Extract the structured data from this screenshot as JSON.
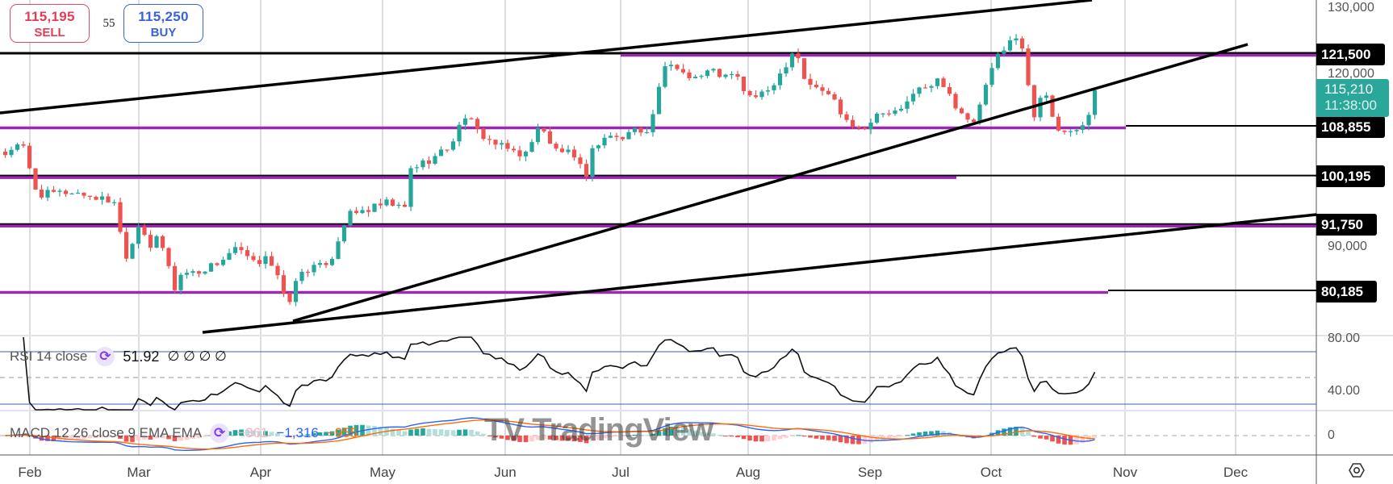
{
  "trade": {
    "sell_price": "115,195",
    "sell_label": "SELL",
    "spread": "55",
    "buy_price": "115,250",
    "buy_label": "BUY"
  },
  "price_axis": {
    "ticks": [
      "130,000",
      "120,000",
      "90,000"
    ],
    "levels": [
      {
        "price": 121500,
        "label": "121,500"
      },
      {
        "price": 108855,
        "label": "108,855"
      },
      {
        "price": 100195,
        "label": "100,195"
      },
      {
        "price": 91750,
        "label": "91,750"
      },
      {
        "price": 80185,
        "label": "80,185"
      }
    ],
    "current": {
      "price": "115,210",
      "countdown": "11:38:00"
    }
  },
  "rsi": {
    "title": "RSI 14 close",
    "value": "51.92",
    "extras": "∅ ∅ ∅ ∅",
    "ticks": [
      "80.00",
      "40.00"
    ]
  },
  "macd": {
    "title": "MACD 12 26 close 9 EMA EMA",
    "hist": "−361",
    "macd": "−1,316",
    "signal": "−955",
    "ticks": [
      "0"
    ]
  },
  "watermark": "TV TradingView",
  "time_axis": {
    "months": [
      "Feb",
      "Mar",
      "Apr",
      "May",
      "Jun",
      "Jul",
      "Aug",
      "Sep",
      "Oct",
      "Nov",
      "Dec"
    ]
  },
  "colors": {
    "up": "#26a69a",
    "down": "#ef5350",
    "level": "#9c27b0",
    "macd": "#2962ff",
    "signal": "#ff6d00",
    "current": "#2aa79b"
  },
  "chart_data": {
    "type": "candlestick",
    "title": "",
    "xlabel": "",
    "ylabel": "",
    "ylim": [
      76000,
      130000
    ],
    "indicators": [
      "RSI 14",
      "MACD 12 26 9"
    ],
    "close_anchors": [
      [
        "01-24",
        103000
      ],
      [
        "01-28",
        105500
      ],
      [
        "01-31",
        105000
      ],
      [
        "02-01",
        101000
      ],
      [
        "02-03",
        97000
      ],
      [
        "02-12",
        97500
      ],
      [
        "02-21",
        96000
      ],
      [
        "02-23",
        96000
      ],
      [
        "02-24",
        91000
      ],
      [
        "02-26",
        86000
      ],
      [
        "03-02",
        94000
      ],
      [
        "03-03",
        86000
      ],
      [
        "03-04",
        88000
      ],
      [
        "03-06",
        89500
      ],
      [
        "03-08",
        86000
      ],
      [
        "03-10",
        80500
      ],
      [
        "03-12",
        83500
      ],
      [
        "03-16",
        83500
      ],
      [
        "03-22",
        85500
      ],
      [
        "03-25",
        87500
      ],
      [
        "03-27",
        87000
      ],
      [
        "03-31",
        84500
      ],
      [
        "04-02",
        87000
      ],
      [
        "04-05",
        83000
      ],
      [
        "04-07",
        78500
      ],
      [
        "04-09",
        79000
      ],
      [
        "04-10",
        83000
      ],
      [
        "04-12",
        84000
      ],
      [
        "04-16",
        84500
      ],
      [
        "04-19",
        86500
      ],
      [
        "04-21",
        91500
      ],
      [
        "04-23",
        93500
      ],
      [
        "04-27",
        94300
      ],
      [
        "05-02",
        95500
      ],
      [
        "05-07",
        94500
      ],
      [
        "05-08",
        101500
      ],
      [
        "05-14",
        103500
      ],
      [
        "05-18",
        105500
      ],
      [
        "05-22",
        111000
      ],
      [
        "05-25",
        108000
      ],
      [
        "05-29",
        106000
      ],
      [
        "06-01",
        105000
      ],
      [
        "06-04",
        104500
      ],
      [
        "06-06",
        103800
      ],
      [
        "06-08",
        106000
      ],
      [
        "06-10",
        110000
      ],
      [
        "06-13",
        105000
      ],
      [
        "06-17",
        104500
      ],
      [
        "06-22",
        100500
      ],
      [
        "06-24",
        105500
      ],
      [
        "06-28",
        107500
      ],
      [
        "07-01",
        106500
      ],
      [
        "07-04",
        108500
      ],
      [
        "07-07",
        108000
      ],
      [
        "07-09",
        111000
      ],
      [
        "07-11",
        118500
      ],
      [
        "07-14",
        119500
      ],
      [
        "07-17",
        118000
      ],
      [
        "07-20",
        117500
      ],
      [
        "07-23",
        118800
      ],
      [
        "07-26",
        117500
      ],
      [
        "07-29",
        117800
      ],
      [
        "08-01",
        114000
      ],
      [
        "08-03",
        114200
      ],
      [
        "08-05",
        114300
      ],
      [
        "08-08",
        117000
      ],
      [
        "08-10",
        119000
      ],
      [
        "08-13",
        123000
      ],
      [
        "08-15",
        117500
      ],
      [
        "08-18",
        115500
      ],
      [
        "08-22",
        114500
      ],
      [
        "08-25",
        111000
      ],
      [
        "08-29",
        108500
      ],
      [
        "09-01",
        109500
      ],
      [
        "09-03",
        111000
      ],
      [
        "09-06",
        111200
      ],
      [
        "09-09",
        111500
      ],
      [
        "09-12",
        115500
      ],
      [
        "09-15",
        115300
      ],
      [
        "09-18",
        117000
      ],
      [
        "09-20",
        116000
      ],
      [
        "09-22",
        112500
      ],
      [
        "09-25",
        109500
      ],
      [
        "09-27",
        109800
      ],
      [
        "09-29",
        114000
      ],
      [
        "10-01",
        118500
      ],
      [
        "10-03",
        122000
      ],
      [
        "10-06",
        124500
      ],
      [
        "10-08",
        123000
      ],
      [
        "10-09",
        121500
      ],
      [
        "10-10",
        113000
      ],
      [
        "10-11",
        111000
      ],
      [
        "10-13",
        115300
      ],
      [
        "10-15",
        111000
      ],
      [
        "10-17",
        107500
      ],
      [
        "10-19",
        108500
      ],
      [
        "10-21",
        108000
      ],
      [
        "10-23",
        110500
      ],
      [
        "10-24",
        111500
      ],
      [
        "10-25",
        115210
      ]
    ]
  }
}
